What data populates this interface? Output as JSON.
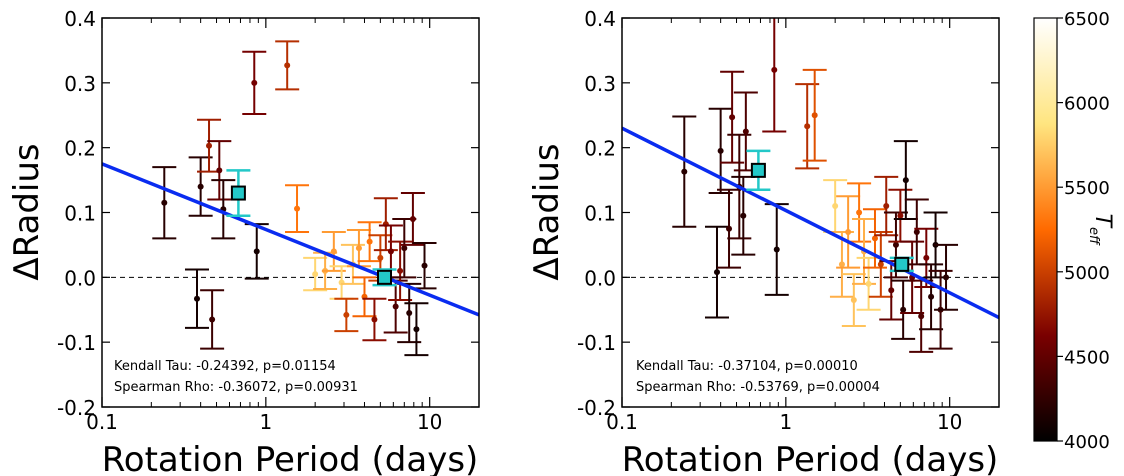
{
  "chart_data": [
    {
      "type": "scatter",
      "xlabel": "Rotation Period (days)",
      "ylabel": "ΔRadius",
      "xscale": "log",
      "xlim": [
        0.1,
        20
      ],
      "ylim": [
        -0.2,
        0.4
      ],
      "xticks": [
        {
          "value": 0.1,
          "label": "0.1"
        },
        {
          "value": 1,
          "label": "1"
        },
        {
          "value": 10,
          "label": "10"
        }
      ],
      "yticks": [
        {
          "value": -0.2,
          "label": "-0.2"
        },
        {
          "value": -0.1,
          "label": "-0.1"
        },
        {
          "value": 0.0,
          "label": "0.0"
        },
        {
          "value": 0.1,
          "label": "0.1"
        },
        {
          "value": 0.2,
          "label": "0.2"
        },
        {
          "value": 0.3,
          "label": "0.3"
        },
        {
          "value": 0.4,
          "label": "0.4"
        }
      ],
      "zero_line": 0,
      "fit_line": {
        "x": [
          0.1,
          20
        ],
        "y": [
          0.175,
          -0.058
        ],
        "color": "#0a2cf0"
      },
      "stats": [
        "Kendall Tau: -0.24392, p=0.01154",
        "Spearman Rho: -0.36072, p=0.00931"
      ],
      "points": [
        {
          "x": 0.24,
          "y": 0.115,
          "err": 0.055,
          "teff": 4200
        },
        {
          "x": 0.38,
          "y": -0.033,
          "err": 0.045,
          "teff": 4100
        },
        {
          "x": 0.4,
          "y": 0.14,
          "err": 0.045,
          "teff": 4200
        },
        {
          "x": 0.45,
          "y": 0.203,
          "err": 0.04,
          "teff": 4800
        },
        {
          "x": 0.47,
          "y": -0.065,
          "err": 0.045,
          "teff": 4300
        },
        {
          "x": 0.52,
          "y": 0.165,
          "err": 0.045,
          "teff": 4500
        },
        {
          "x": 0.55,
          "y": 0.105,
          "err": 0.045,
          "teff": 4200
        },
        {
          "x": 0.85,
          "y": 0.3,
          "err": 0.048,
          "teff": 4600
        },
        {
          "x": 0.88,
          "y": 0.04,
          "err": 0.042,
          "teff": 4100
        },
        {
          "x": 1.35,
          "y": 0.327,
          "err": 0.037,
          "teff": 4900
        },
        {
          "x": 1.55,
          "y": 0.106,
          "err": 0.036,
          "teff": 5300
        },
        {
          "x": 2.0,
          "y": 0.005,
          "err": 0.025,
          "teff": 5800
        },
        {
          "x": 2.3,
          "y": 0.01,
          "err": 0.028,
          "teff": 5600
        },
        {
          "x": 2.6,
          "y": 0.04,
          "err": 0.03,
          "teff": 5500
        },
        {
          "x": 2.9,
          "y": -0.008,
          "err": 0.025,
          "teff": 5800
        },
        {
          "x": 3.1,
          "y": -0.058,
          "err": 0.025,
          "teff": 5000
        },
        {
          "x": 3.4,
          "y": 0.02,
          "err": 0.03,
          "teff": 5700
        },
        {
          "x": 3.7,
          "y": 0.045,
          "err": 0.028,
          "teff": 5500
        },
        {
          "x": 4.0,
          "y": -0.03,
          "err": 0.03,
          "teff": 5200
        },
        {
          "x": 4.3,
          "y": 0.055,
          "err": 0.03,
          "teff": 5300
        },
        {
          "x": 4.6,
          "y": -0.065,
          "err": 0.032,
          "teff": 4700
        },
        {
          "x": 5.0,
          "y": 0.03,
          "err": 0.035,
          "teff": 5000
        },
        {
          "x": 5.4,
          "y": 0.082,
          "err": 0.04,
          "teff": 4800
        },
        {
          "x": 5.8,
          "y": 0.04,
          "err": 0.04,
          "teff": 4600
        },
        {
          "x": 6.2,
          "y": -0.045,
          "err": 0.04,
          "teff": 4400
        },
        {
          "x": 6.6,
          "y": 0.01,
          "err": 0.045,
          "teff": 4700
        },
        {
          "x": 7.0,
          "y": 0.045,
          "err": 0.045,
          "teff": 4300
        },
        {
          "x": 7.5,
          "y": -0.055,
          "err": 0.045,
          "teff": 4200
        },
        {
          "x": 7.9,
          "y": 0.09,
          "err": 0.04,
          "teff": 4500
        },
        {
          "x": 8.3,
          "y": -0.08,
          "err": 0.04,
          "teff": 4100
        },
        {
          "x": 9.3,
          "y": 0.018,
          "err": 0.035,
          "teff": 4200
        }
      ],
      "highlight": [
        {
          "x": 0.68,
          "y": 0.13,
          "err": 0.035,
          "color": "#23c8c8"
        },
        {
          "x": 5.3,
          "y": 0.0,
          "err": 0.012,
          "color": "#23c8c8"
        }
      ]
    },
    {
      "type": "scatter",
      "xlabel": "Rotation Period (days)",
      "ylabel": "ΔRadius",
      "xscale": "log",
      "xlim": [
        0.1,
        20
      ],
      "ylim": [
        -0.2,
        0.4
      ],
      "xticks": [
        {
          "value": 0.1,
          "label": "0.1"
        },
        {
          "value": 1,
          "label": "1"
        },
        {
          "value": 10,
          "label": "10"
        }
      ],
      "yticks": [
        {
          "value": -0.2,
          "label": "-0.2"
        },
        {
          "value": -0.1,
          "label": "-0.1"
        },
        {
          "value": 0.0,
          "label": "0.0"
        },
        {
          "value": 0.1,
          "label": "0.1"
        },
        {
          "value": 0.2,
          "label": "0.2"
        },
        {
          "value": 0.3,
          "label": "0.3"
        },
        {
          "value": 0.4,
          "label": "0.4"
        }
      ],
      "zero_line": 0,
      "fit_line": {
        "x": [
          0.1,
          20
        ],
        "y": [
          0.23,
          -0.062
        ],
        "color": "#0a2cf0"
      },
      "stats": [
        "Kendall Tau: -0.37104, p=0.00010",
        "Spearman Rho: -0.53769, p=0.00004"
      ],
      "points": [
        {
          "x": 0.24,
          "y": 0.163,
          "err": 0.085,
          "teff": 4200
        },
        {
          "x": 0.38,
          "y": 0.008,
          "err": 0.07,
          "teff": 4100
        },
        {
          "x": 0.4,
          "y": 0.195,
          "err": 0.065,
          "teff": 4200
        },
        {
          "x": 0.45,
          "y": 0.075,
          "err": 0.06,
          "teff": 4300
        },
        {
          "x": 0.47,
          "y": 0.247,
          "err": 0.07,
          "teff": 4500
        },
        {
          "x": 0.52,
          "y": 0.14,
          "err": 0.08,
          "teff": 4300
        },
        {
          "x": 0.55,
          "y": 0.095,
          "err": 0.06,
          "teff": 4200
        },
        {
          "x": 0.57,
          "y": 0.225,
          "err": 0.06,
          "teff": 4400
        },
        {
          "x": 0.85,
          "y": 0.32,
          "err": 0.095,
          "teff": 4600
        },
        {
          "x": 0.88,
          "y": 0.043,
          "err": 0.07,
          "teff": 4100
        },
        {
          "x": 1.35,
          "y": 0.233,
          "err": 0.065,
          "teff": 4900
        },
        {
          "x": 1.5,
          "y": 0.25,
          "err": 0.07,
          "teff": 5100
        },
        {
          "x": 2.0,
          "y": 0.11,
          "err": 0.04,
          "teff": 5800
        },
        {
          "x": 2.2,
          "y": 0.02,
          "err": 0.05,
          "teff": 5600
        },
        {
          "x": 2.4,
          "y": 0.07,
          "err": 0.055,
          "teff": 5500
        },
        {
          "x": 2.6,
          "y": -0.035,
          "err": 0.04,
          "teff": 5700
        },
        {
          "x": 2.8,
          "y": 0.1,
          "err": 0.045,
          "teff": 5300
        },
        {
          "x": 3.0,
          "y": 0.04,
          "err": 0.05,
          "teff": 5600
        },
        {
          "x": 3.2,
          "y": -0.01,
          "err": 0.04,
          "teff": 5800
        },
        {
          "x": 3.5,
          "y": 0.06,
          "err": 0.045,
          "teff": 5200
        },
        {
          "x": 3.8,
          "y": 0.02,
          "err": 0.05,
          "teff": 5000
        },
        {
          "x": 4.1,
          "y": 0.11,
          "err": 0.045,
          "teff": 4800
        },
        {
          "x": 4.4,
          "y": -0.02,
          "err": 0.045,
          "teff": 4500
        },
        {
          "x": 4.7,
          "y": 0.05,
          "err": 0.05,
          "teff": 4300
        },
        {
          "x": 5.0,
          "y": 0.095,
          "err": 0.04,
          "teff": 4700
        },
        {
          "x": 5.2,
          "y": -0.05,
          "err": 0.045,
          "teff": 4200
        },
        {
          "x": 5.4,
          "y": 0.15,
          "err": 0.06,
          "teff": 4100
        },
        {
          "x": 5.9,
          "y": 0.0,
          "err": 0.055,
          "teff": 4500
        },
        {
          "x": 6.3,
          "y": 0.07,
          "err": 0.05,
          "teff": 4300
        },
        {
          "x": 6.7,
          "y": -0.06,
          "err": 0.055,
          "teff": 4400
        },
        {
          "x": 7.2,
          "y": 0.03,
          "err": 0.045,
          "teff": 4600
        },
        {
          "x": 7.7,
          "y": -0.03,
          "err": 0.05,
          "teff": 4200
        },
        {
          "x": 8.2,
          "y": 0.05,
          "err": 0.05,
          "teff": 4100
        },
        {
          "x": 8.8,
          "y": -0.05,
          "err": 0.06,
          "teff": 4300
        },
        {
          "x": 9.5,
          "y": 0.0,
          "err": 0.05,
          "teff": 4200
        }
      ],
      "highlight": [
        {
          "x": 0.68,
          "y": 0.165,
          "err": 0.03,
          "color": "#23c8c8"
        },
        {
          "x": 5.1,
          "y": 0.02,
          "err": 0.01,
          "color": "#23c8c8"
        }
      ]
    }
  ],
  "colorbar": {
    "label": "T_eff",
    "label_main": "T",
    "label_sub": "eff",
    "min": 4000,
    "max": 6500,
    "ticks": [
      {
        "value": 4000,
        "label": "4000"
      },
      {
        "value": 4500,
        "label": "4500"
      },
      {
        "value": 5000,
        "label": "5000"
      },
      {
        "value": 5500,
        "label": "5500"
      },
      {
        "value": 6000,
        "label": "6000"
      },
      {
        "value": 6500,
        "label": "6500"
      }
    ],
    "colormap": "afmhot",
    "colors": [
      "#000000",
      "#7a0000",
      "#ff6a00",
      "#ffe580",
      "#ffffff"
    ]
  }
}
